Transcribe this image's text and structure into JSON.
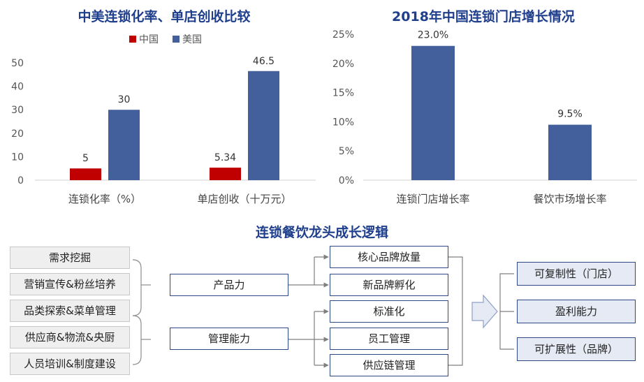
{
  "chart_data": [
    {
      "type": "bar",
      "title": "中美连锁化率、单店创收比较",
      "categories": [
        "连锁化率（%）",
        "单店创收（十万元）"
      ],
      "series": [
        {
          "name": "中国",
          "values": [
            5,
            5.34
          ],
          "labels": [
            "5",
            "5.34"
          ],
          "color": "#c00000"
        },
        {
          "name": "美国",
          "values": [
            30,
            46.5
          ],
          "labels": [
            "30",
            "46.5"
          ],
          "color": "#44609c"
        }
      ],
      "yticks": [
        "0",
        "10",
        "20",
        "30",
        "40",
        "50"
      ],
      "ylim": [
        0,
        50
      ],
      "legend": "top-center",
      "grid": false
    },
    {
      "type": "bar",
      "title": "2018年中国连锁门店增长情况",
      "categories": [
        "连锁门店增长率",
        "餐饮市场增长率"
      ],
      "values": [
        23.0,
        9.5
      ],
      "labels": [
        "23.0%",
        "9.5%"
      ],
      "color": "#44609c",
      "yticks": [
        "0%",
        "5%",
        "10%",
        "15%",
        "20%",
        "25%"
      ],
      "ylim": [
        0,
        25
      ],
      "grid": false
    }
  ],
  "diagram": {
    "title": "连锁餐饮龙头成长逻辑",
    "left": [
      "需求挖掘",
      "营销宣传&粉丝培养",
      "品类探索&菜单管理",
      "供应商&物流&央厨",
      "人员培训&制度建设"
    ],
    "middle": [
      "产品力",
      "管理能力"
    ],
    "right": [
      "核心品牌放量",
      "新品牌孵化",
      "标准化",
      "员工管理",
      "供应链管理"
    ],
    "outcomes": [
      "可复制性（门店）",
      "盈利能力",
      "可扩展性（品牌）"
    ]
  }
}
